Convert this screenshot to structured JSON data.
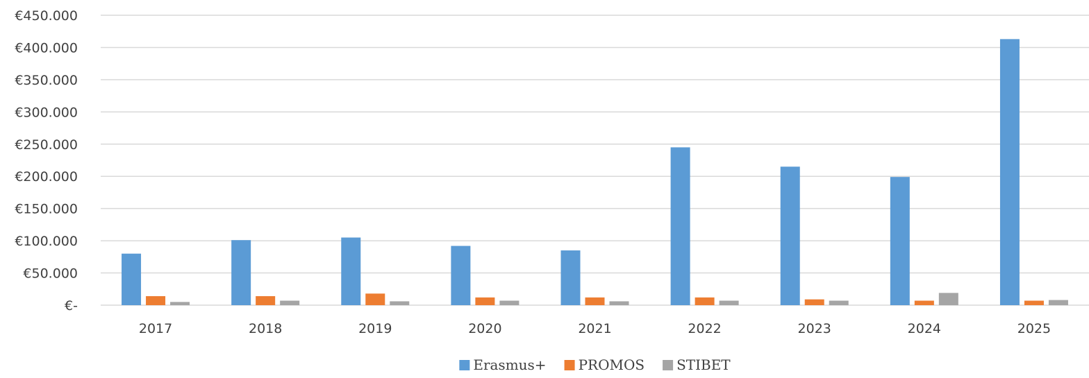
{
  "chart_data": {
    "type": "bar",
    "title": "",
    "xlabel": "",
    "ylabel": "",
    "categories": [
      "2017",
      "2018",
      "2019",
      "2020",
      "2021",
      "2022",
      "2023",
      "2024",
      "2025"
    ],
    "series": [
      {
        "name": "Erasmus+",
        "color": "#5B9BD5",
        "values": [
          80000,
          101000,
          105000,
          92000,
          85000,
          245000,
          215000,
          199000,
          413000
        ]
      },
      {
        "name": "PROMOS",
        "color": "#ED7D31",
        "values": [
          14000,
          14000,
          18000,
          12000,
          12000,
          12000,
          9000,
          7000,
          7000
        ]
      },
      {
        "name": "STIBET",
        "color": "#A5A5A5",
        "values": [
          5000,
          7000,
          6000,
          7000,
          6000,
          7000,
          7000,
          19000,
          8000
        ]
      }
    ],
    "ylim": [
      0,
      450000
    ],
    "yticks": [
      {
        "value": 0,
        "label": "€-"
      },
      {
        "value": 50000,
        "label": "€50.000"
      },
      {
        "value": 100000,
        "label": "€100.000"
      },
      {
        "value": 150000,
        "label": "€150.000"
      },
      {
        "value": 200000,
        "label": "€200.000"
      },
      {
        "value": 250000,
        "label": "€250.000"
      },
      {
        "value": 300000,
        "label": "€300.000"
      },
      {
        "value": 350000,
        "label": "€350.000"
      },
      {
        "value": 400000,
        "label": "€400.000"
      },
      {
        "value": 450000,
        "label": "€450.000"
      }
    ],
    "grid": true,
    "legend": "bottom-center"
  }
}
